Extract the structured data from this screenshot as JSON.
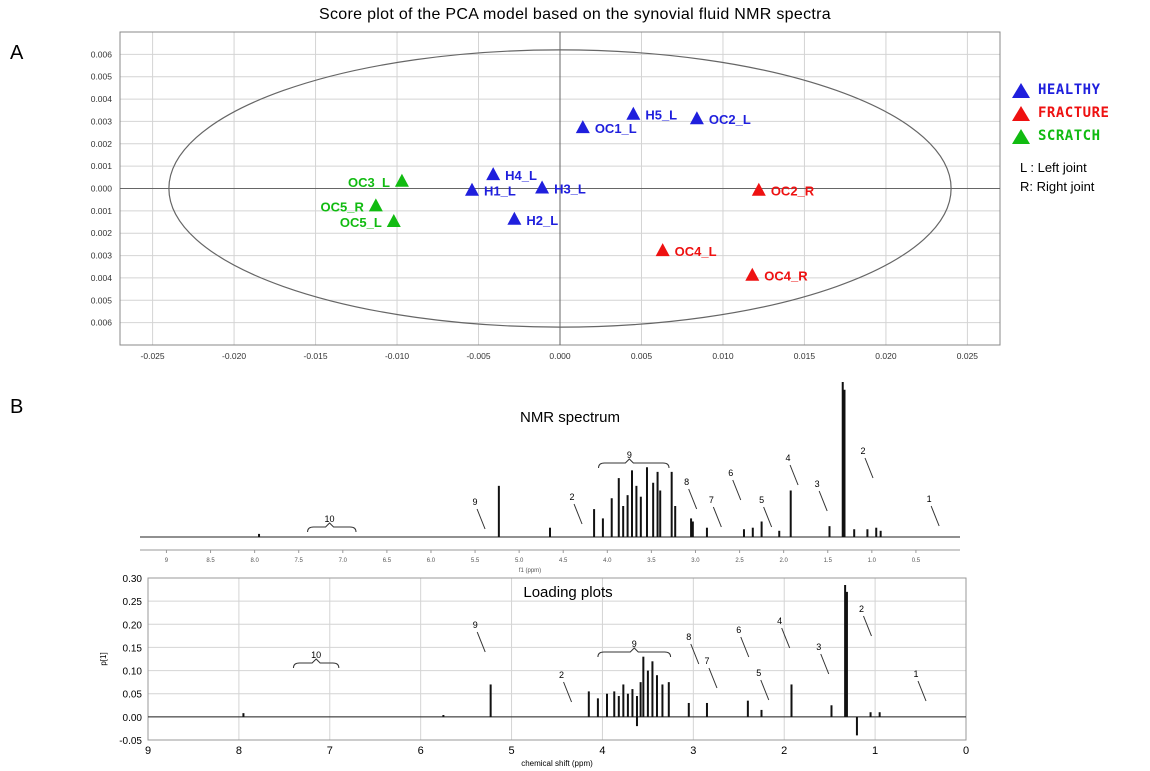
{
  "title": "Score plot of the PCA model based on the synovial fluid NMR spectra",
  "panel_a_label": "A",
  "panel_b_label": "B",
  "colors": {
    "healthy": "#1f1fdd",
    "fracture": "#ee1111",
    "scratch": "#11bb11",
    "axis": "#555555",
    "grid": "#d4d4d4"
  },
  "legend": [
    {
      "label": "HEALTHY",
      "color": "#1f1fdd"
    },
    {
      "label": "FRACTURE",
      "color": "#ee1111"
    },
    {
      "label": "SCRATCH",
      "color": "#11bb11"
    }
  ],
  "notes": [
    "L : Left joint",
    "R: Right joint"
  ],
  "chart_data": [
    {
      "type": "scatter",
      "xlim": [
        -0.027,
        0.027
      ],
      "ylim": [
        -0.007,
        0.007
      ],
      "x_ticks": [
        "-0.025",
        "-0.020",
        "-0.015",
        "-0.010",
        "-0.005",
        "0.000",
        "0.005",
        "0.010",
        "0.015",
        "0.020",
        "0.025"
      ],
      "y_ticks": [
        "0.006",
        "0.005",
        "0.004",
        "0.003",
        "0.002",
        "0.001",
        "0.000",
        "0.001",
        "0.002",
        "0.003",
        "0.004",
        "0.005",
        "0.006"
      ],
      "grid": true,
      "ellipse": {
        "rx": 0.024,
        "ry": 0.0062
      },
      "series": [
        {
          "name": "HEALTHY",
          "color": "#1f1fdd",
          "points": [
            {
              "label": "H5_L",
              "x": 0.0045,
              "y": 0.0033
            },
            {
              "label": "OC2_L",
              "x": 0.0084,
              "y": 0.0031
            },
            {
              "label": "OC1_L",
              "x": 0.0014,
              "y": 0.0027
            },
            {
              "label": "H4_L",
              "x": -0.0041,
              "y": 0.0006
            },
            {
              "label": "H1_L",
              "x": -0.0054,
              "y": -0.0001
            },
            {
              "label": "H3_L",
              "x": -0.0011,
              "y": 0.0
            },
            {
              "label": "H2_L",
              "x": -0.0028,
              "y": -0.0014
            }
          ]
        },
        {
          "name": "FRACTURE",
          "color": "#ee1111",
          "points": [
            {
              "label": "OC2_R",
              "x": 0.0122,
              "y": -0.0001
            },
            {
              "label": "OC4_L",
              "x": 0.0063,
              "y": -0.0028
            },
            {
              "label": "OC4_R",
              "x": 0.0118,
              "y": -0.0039
            }
          ]
        },
        {
          "name": "SCRATCH",
          "color": "#11bb11",
          "points": [
            {
              "label": "OC3_L",
              "x": -0.0097,
              "y": 0.0003
            },
            {
              "label": "OC5_R",
              "x": -0.0113,
              "y": -0.0008
            },
            {
              "label": "OC5_L",
              "x": -0.0102,
              "y": -0.0015
            }
          ]
        }
      ]
    },
    {
      "type": "line",
      "title": "NMR spectrum",
      "x_reversed": true,
      "xlim": [
        9.3,
        0.0
      ],
      "x_ticks": [
        "9",
        "8.5",
        "8.0",
        "7.5",
        "7.0",
        "6.5",
        "6.0",
        "5.5",
        "5.0",
        "4.5",
        "4.0",
        "3.5",
        "3.0",
        "2.5",
        "2.0",
        "1.5",
        "1.0",
        "0.5"
      ],
      "x_ticks_at": [
        9,
        8.5,
        8.0,
        7.5,
        7.0,
        6.5,
        6.0,
        5.5,
        5.0,
        4.5,
        4.0,
        3.5,
        3.0,
        2.5,
        2.0,
        1.5,
        1.0,
        0.5
      ],
      "xlabel": "f1 (ppm)",
      "peaks": [
        {
          "x": 7.95,
          "h": 0.02
        },
        {
          "x": 5.23,
          "h": 0.33
        },
        {
          "x": 4.65,
          "h": 0.06
        },
        {
          "x": 4.15,
          "h": 0.18
        },
        {
          "x": 4.05,
          "h": 0.12
        },
        {
          "x": 3.95,
          "h": 0.25
        },
        {
          "x": 3.87,
          "h": 0.38
        },
        {
          "x": 3.82,
          "h": 0.2
        },
        {
          "x": 3.77,
          "h": 0.27
        },
        {
          "x": 3.72,
          "h": 0.43
        },
        {
          "x": 3.67,
          "h": 0.33
        },
        {
          "x": 3.62,
          "h": 0.26
        },
        {
          "x": 3.55,
          "h": 0.45
        },
        {
          "x": 3.48,
          "h": 0.35
        },
        {
          "x": 3.43,
          "h": 0.42
        },
        {
          "x": 3.4,
          "h": 0.3
        },
        {
          "x": 3.27,
          "h": 0.42
        },
        {
          "x": 3.23,
          "h": 0.2
        },
        {
          "x": 3.05,
          "h": 0.12
        },
        {
          "x": 3.03,
          "h": 0.1
        },
        {
          "x": 2.87,
          "h": 0.06
        },
        {
          "x": 2.45,
          "h": 0.05
        },
        {
          "x": 2.35,
          "h": 0.06
        },
        {
          "x": 2.25,
          "h": 0.1
        },
        {
          "x": 2.05,
          "h": 0.04
        },
        {
          "x": 1.92,
          "h": 0.3
        },
        {
          "x": 1.48,
          "h": 0.07
        },
        {
          "x": 1.33,
          "h": 1.0
        },
        {
          "x": 1.31,
          "h": 0.95
        },
        {
          "x": 1.2,
          "h": 0.05
        },
        {
          "x": 1.05,
          "h": 0.05
        },
        {
          "x": 0.95,
          "h": 0.06
        },
        {
          "x": 0.9,
          "h": 0.04
        }
      ],
      "annotations": [
        {
          "text": "10",
          "x": 7.15,
          "type": "brace",
          "x1": 7.4,
          "x2": 6.85
        },
        {
          "text": "9",
          "x": 5.5
        },
        {
          "text": "2",
          "x": 4.4
        },
        {
          "text": "9",
          "x": 3.75,
          "type": "brace",
          "x1": 4.1,
          "x2": 3.3
        },
        {
          "text": "8",
          "x": 3.1
        },
        {
          "text": "7",
          "x": 2.82
        },
        {
          "text": "6",
          "x": 2.6
        },
        {
          "text": "5",
          "x": 2.25
        },
        {
          "text": "4",
          "x": 1.95
        },
        {
          "text": "3",
          "x": 1.62
        },
        {
          "text": "2",
          "x": 1.1
        },
        {
          "text": "1",
          "x": 0.35
        }
      ]
    },
    {
      "type": "line",
      "title": "Loading plots",
      "x_reversed": true,
      "xlim": [
        9.0,
        0.0
      ],
      "ylim": [
        -0.05,
        0.3
      ],
      "xlabel": "chemical shift (ppm)",
      "ylabel": "p[1]",
      "x_ticks": [
        "9",
        "8",
        "7",
        "6",
        "5",
        "4",
        "3",
        "2",
        "1",
        "0"
      ],
      "y_ticks": [
        "0.30",
        "0.25",
        "0.20",
        "0.15",
        "0.10",
        "0.05",
        "0.00",
        "-0.05"
      ],
      "grid": true,
      "peaks": [
        {
          "x": 7.95,
          "h": 0.008
        },
        {
          "x": 5.75,
          "h": 0.004
        },
        {
          "x": 5.23,
          "h": 0.07
        },
        {
          "x": 4.15,
          "h": 0.055
        },
        {
          "x": 4.05,
          "h": 0.04
        },
        {
          "x": 3.95,
          "h": 0.05
        },
        {
          "x": 3.87,
          "h": 0.055
        },
        {
          "x": 3.82,
          "h": 0.045
        },
        {
          "x": 3.77,
          "h": 0.07
        },
        {
          "x": 3.72,
          "h": 0.05
        },
        {
          "x": 3.67,
          "h": 0.06
        },
        {
          "x": 3.62,
          "h": 0.045
        },
        {
          "x": 3.58,
          "h": 0.075
        },
        {
          "x": 3.55,
          "h": 0.13
        },
        {
          "x": 3.5,
          "h": 0.1
        },
        {
          "x": 3.45,
          "h": 0.12
        },
        {
          "x": 3.4,
          "h": 0.09
        },
        {
          "x": 3.34,
          "h": 0.07
        },
        {
          "x": 3.27,
          "h": 0.075
        },
        {
          "x": 3.05,
          "h": 0.03
        },
        {
          "x": 2.85,
          "h": 0.03
        },
        {
          "x": 2.4,
          "h": 0.035
        },
        {
          "x": 2.25,
          "h": 0.015
        },
        {
          "x": 1.92,
          "h": 0.07
        },
        {
          "x": 1.48,
          "h": 0.025
        },
        {
          "x": 1.33,
          "h": 0.285
        },
        {
          "x": 1.31,
          "h": 0.27
        },
        {
          "x": 1.2,
          "h": -0.04
        },
        {
          "x": 1.05,
          "h": 0.01
        },
        {
          "x": 0.95,
          "h": 0.01
        },
        {
          "x": 3.62,
          "h": -0.02
        }
      ],
      "annotations": [
        {
          "text": "10",
          "x": 7.15,
          "type": "brace",
          "x1": 7.4,
          "x2": 6.9
        },
        {
          "text": "9",
          "x": 5.4
        },
        {
          "text": "2",
          "x": 4.45
        },
        {
          "text": "9",
          "x": 3.65,
          "type": "brace",
          "x1": 4.05,
          "x2": 3.25
        },
        {
          "text": "8",
          "x": 3.05
        },
        {
          "text": "7",
          "x": 2.85
        },
        {
          "text": "6",
          "x": 2.5
        },
        {
          "text": "5",
          "x": 2.28
        },
        {
          "text": "4",
          "x": 2.05
        },
        {
          "text": "3",
          "x": 1.62
        },
        {
          "text": "2",
          "x": 1.15
        },
        {
          "text": "1",
          "x": 0.55
        }
      ]
    }
  ]
}
